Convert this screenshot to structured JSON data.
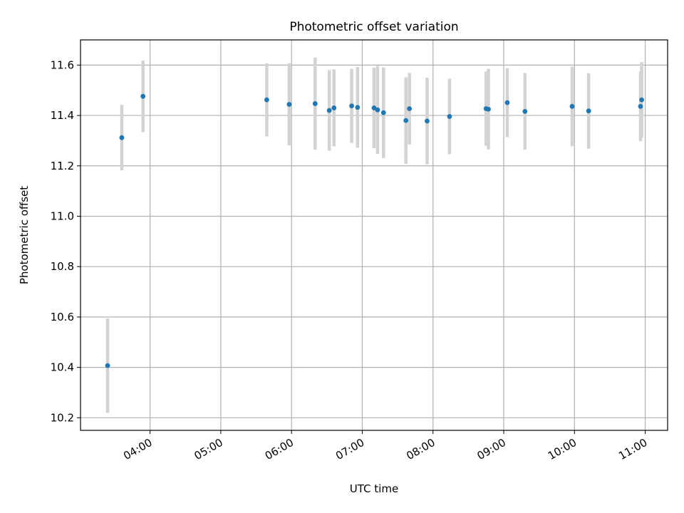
{
  "chart_data": {
    "type": "scatter",
    "title": "Photometric offset variation",
    "xlabel": "UTC time",
    "ylabel": "Photometric offset",
    "x_unit": "UTC time of day",
    "xlim": [
      "03:01",
      "11:19"
    ],
    "ylim": [
      10.15,
      11.7
    ],
    "x_ticks": [
      "04:00",
      "05:00",
      "06:00",
      "07:00",
      "08:00",
      "09:00",
      "10:00",
      "11:00"
    ],
    "y_ticks": [
      "10.2",
      "10.4",
      "10.6",
      "10.8",
      "11.0",
      "11.2",
      "11.4",
      "11.6"
    ],
    "grid": true,
    "legend": "none",
    "errorbar_color": "#d3d3d3",
    "point_color": "#1f77b4",
    "points": [
      {
        "x": "03:24",
        "y": 10.407,
        "err": 0.187
      },
      {
        "x": "03:36",
        "y": 11.312,
        "err": 0.13
      },
      {
        "x": "03:54",
        "y": 11.476,
        "err": 0.142
      },
      {
        "x": "05:39",
        "y": 11.462,
        "err": 0.145
      },
      {
        "x": "05:58",
        "y": 11.444,
        "err": 0.163
      },
      {
        "x": "06:20",
        "y": 11.447,
        "err": 0.183
      },
      {
        "x": "06:32",
        "y": 11.42,
        "err": 0.16
      },
      {
        "x": "06:36",
        "y": 11.43,
        "err": 0.153
      },
      {
        "x": "06:51",
        "y": 11.438,
        "err": 0.147
      },
      {
        "x": "06:56",
        "y": 11.432,
        "err": 0.16
      },
      {
        "x": "07:10",
        "y": 11.43,
        "err": 0.16
      },
      {
        "x": "07:13",
        "y": 11.422,
        "err": 0.175
      },
      {
        "x": "07:18",
        "y": 11.411,
        "err": 0.18
      },
      {
        "x": "07:37",
        "y": 11.38,
        "err": 0.172
      },
      {
        "x": "07:40",
        "y": 11.427,
        "err": 0.142
      },
      {
        "x": "07:55",
        "y": 11.378,
        "err": 0.172
      },
      {
        "x": "08:14",
        "y": 11.396,
        "err": 0.15
      },
      {
        "x": "08:45",
        "y": 11.427,
        "err": 0.147
      },
      {
        "x": "08:47",
        "y": 11.425,
        "err": 0.16
      },
      {
        "x": "09:03",
        "y": 11.451,
        "err": 0.137
      },
      {
        "x": "09:18",
        "y": 11.416,
        "err": 0.152
      },
      {
        "x": "09:58",
        "y": 11.436,
        "err": 0.158
      },
      {
        "x": "10:12",
        "y": 11.418,
        "err": 0.15
      },
      {
        "x": "10:56",
        "y": 11.436,
        "err": 0.138
      },
      {
        "x": "10:57",
        "y": 11.462,
        "err": 0.15
      }
    ]
  }
}
